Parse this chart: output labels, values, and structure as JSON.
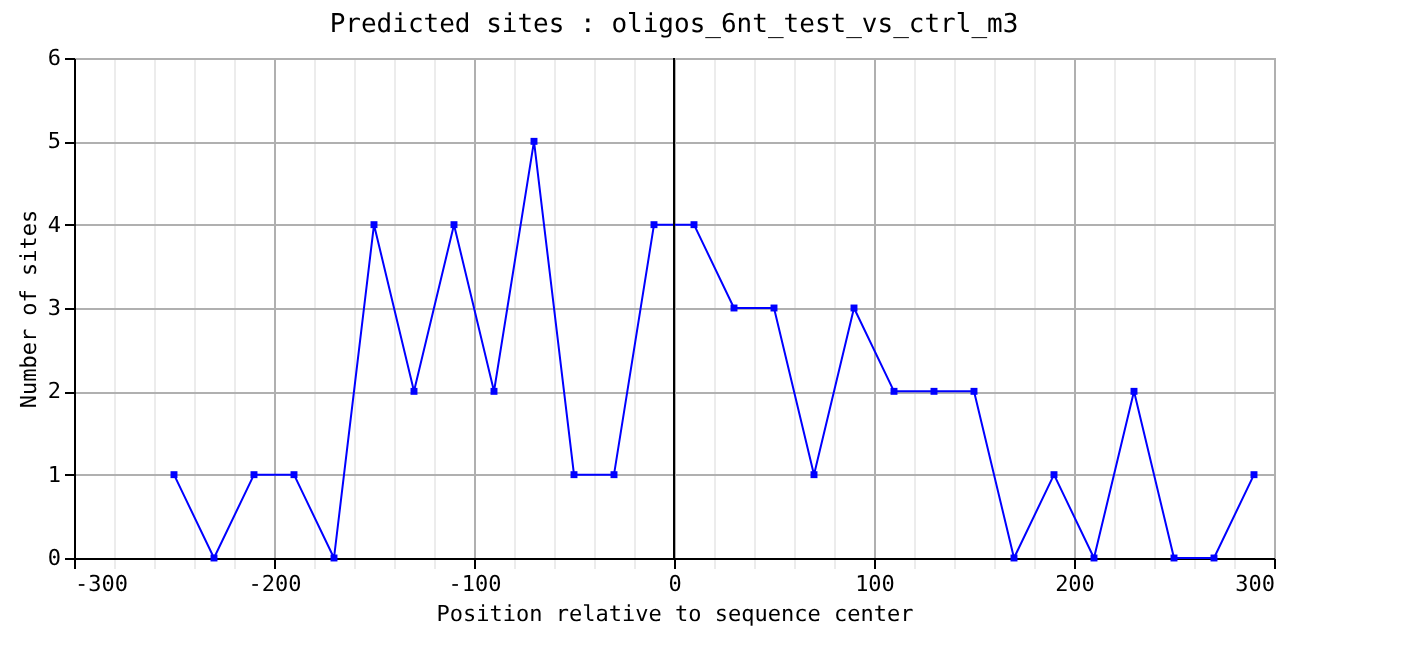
{
  "chart_data": {
    "type": "line",
    "title": "Predicted sites : oligos_6nt_test_vs_ctrl_m3",
    "xlabel": "Position relative to sequence center",
    "ylabel": "Number of sites",
    "x": [
      -250,
      -230,
      -210,
      -190,
      -170,
      -150,
      -130,
      -110,
      -90,
      -70,
      -50,
      -30,
      -10,
      10,
      30,
      50,
      70,
      90,
      110,
      130,
      150,
      170,
      190,
      210,
      230,
      250,
      270,
      290
    ],
    "series": [
      {
        "color": "#0000ff",
        "values": [
          1,
          0,
          1,
          1,
          0,
          4,
          2,
          4,
          2,
          5,
          1,
          1,
          4,
          4,
          3,
          3,
          1,
          3,
          2,
          2,
          2,
          0,
          1,
          0,
          2,
          0,
          0,
          1
        ]
      }
    ],
    "xlim": [
      -300,
      300
    ],
    "xticks": [
      -300,
      {
        "value": -280,
        "label": null
      },
      {
        "value": -260,
        "label": null
      },
      {
        "value": -240,
        "label": null
      },
      {
        "value": -220,
        "label": null
      },
      -200,
      {
        "value": -180,
        "label": null
      },
      {
        "value": -160,
        "label": null
      },
      {
        "value": -140,
        "label": null
      },
      {
        "value": -120,
        "label": null
      },
      -100,
      {
        "value": -80,
        "label": null
      },
      {
        "value": -60,
        "label": null
      },
      {
        "value": -40,
        "label": null
      },
      {
        "value": -20,
        "label": null
      },
      0,
      {
        "value": 20,
        "label": null
      },
      {
        "value": 40,
        "label": null
      },
      {
        "value": 60,
        "label": null
      },
      {
        "value": 80,
        "label": null
      },
      100,
      {
        "value": 120,
        "label": null
      },
      {
        "value": 140,
        "label": null
      },
      {
        "value": 160,
        "label": null
      },
      {
        "value": 180,
        "label": null
      },
      200,
      {
        "value": 220,
        "label": null
      },
      {
        "value": 240,
        "label": null
      },
      {
        "value": 260,
        "label": null
      },
      {
        "value": 280,
        "label": null
      },
      300
    ],
    "ylim": [
      0,
      6
    ],
    "yticks": [
      0,
      1,
      2,
      3,
      4,
      5,
      6
    ],
    "ref_lines": [
      {
        "axis": "x",
        "value": 0,
        "color": "#000000"
      }
    ],
    "grid": true,
    "marker": "square",
    "line_style": "solid"
  }
}
